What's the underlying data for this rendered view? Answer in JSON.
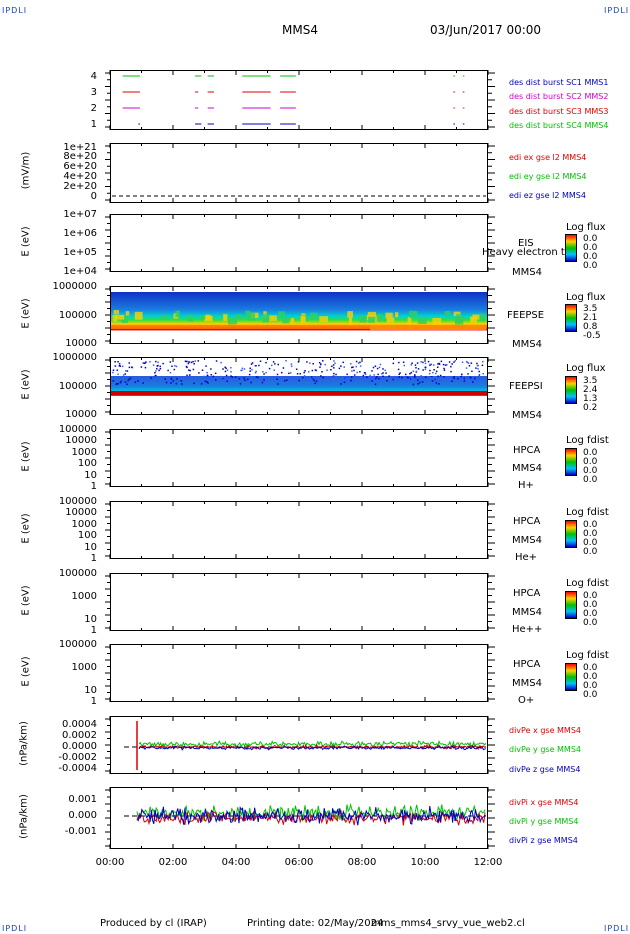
{
  "header": {
    "corner_left": "IPDLI",
    "corner_right": "IPDLI",
    "spacecraft": "MMS4",
    "date": "03/Jun/2017 00:00"
  },
  "footer": {
    "produced": "Produced by cl (IRAP)",
    "printing": "Printing date: 02/May/2024",
    "file": "mms_mms4_srvy_vue_web2.cl",
    "corner_left": "IPDLI",
    "corner_right": "IPDLI"
  },
  "xaxis": {
    "ticks": [
      "00:00",
      "02:00",
      "04:00",
      "06:00",
      "08:00",
      "10:00",
      "12:00"
    ]
  },
  "colors": {
    "red": "#e00000",
    "green": "#00c000",
    "blue": "#0000c0",
    "magenta": "#d000d0"
  },
  "chart_data": [
    {
      "type": "line",
      "panel": "burst",
      "yticks": [
        "4",
        "3",
        "2",
        "1"
      ],
      "legend": [
        "des dist burst SC1 MMS1",
        "des dist burst SC2 MMS2",
        "des dist burst SC3 MMS3",
        "des dist burst SC4 MMS4"
      ]
    },
    {
      "type": "line",
      "panel": "edi",
      "ylabel": "(mV/m)",
      "yticks": [
        "1e+21",
        "8e+20",
        "6e+20",
        "4e+20",
        "2e+20",
        "0"
      ],
      "legend": [
        "edi ex gse l2 MMS4",
        "edi ey gse l2 MMS4",
        "edi ez gse l2 MMS4"
      ]
    },
    {
      "type": "heatmap",
      "panel": "eis",
      "ylabel": "E (eV)",
      "yticks": [
        "1e+07",
        "1e+06",
        "1e+05",
        "1e+04"
      ],
      "instrument": [
        "EIS",
        "MMS4"
      ],
      "overlay": "Heavy electron to",
      "cbar_title": "Log flux",
      "cbar_values": [
        "0.0",
        "0.0",
        "0.0",
        "0.0"
      ]
    },
    {
      "type": "heatmap",
      "panel": "feepse",
      "ylabel": "E (eV)",
      "yticks": [
        "1000000",
        "100000",
        "10000"
      ],
      "instrument": [
        "FEEPSE",
        "MMS4"
      ],
      "cbar_title": "Log flux",
      "cbar_values": [
        "3.5",
        "2.1",
        "0.8",
        "-0.5"
      ]
    },
    {
      "type": "heatmap",
      "panel": "feepsi",
      "ylabel": "E (eV)",
      "yticks": [
        "1000000",
        "100000",
        "10000"
      ],
      "instrument": [
        "FEEPSI",
        "MMS4"
      ],
      "cbar_title": "Log flux",
      "cbar_values": [
        "3.5",
        "2.4",
        "1.3",
        "0.2"
      ]
    },
    {
      "type": "heatmap",
      "panel": "hpca_h",
      "ylabel": "E (eV)",
      "yticks": [
        "100000",
        "10000",
        "1000",
        "100",
        "10",
        "1"
      ],
      "instrument": [
        "HPCA",
        "MMS4",
        "H+"
      ],
      "cbar_title": "Log fdist",
      "cbar_values": [
        "0.0",
        "0.0",
        "0.0",
        "0.0"
      ]
    },
    {
      "type": "heatmap",
      "panel": "hpca_he",
      "ylabel": "E (eV)",
      "yticks": [
        "100000",
        "10000",
        "1000",
        "100",
        "10",
        "1"
      ],
      "instrument": [
        "HPCA",
        "MMS4",
        "He+"
      ],
      "cbar_title": "Log fdist",
      "cbar_values": [
        "0.0",
        "0.0",
        "0.0",
        "0.0"
      ]
    },
    {
      "type": "heatmap",
      "panel": "hpca_hepp",
      "ylabel": "E (eV)",
      "yticks": [
        "100000",
        "1000",
        "10",
        "1"
      ],
      "instrument": [
        "HPCA",
        "MMS4",
        "He++"
      ],
      "cbar_title": "Log fdist",
      "cbar_values": [
        "0.0",
        "0.0",
        "0.0",
        "0.0"
      ]
    },
    {
      "type": "heatmap",
      "panel": "hpca_o",
      "ylabel": "E (eV)",
      "yticks": [
        "100000",
        "1000",
        "10",
        "1"
      ],
      "instrument": [
        "HPCA",
        "MMS4",
        "O+"
      ],
      "cbar_title": "Log fdist",
      "cbar_values": [
        "0.0",
        "0.0",
        "0.0",
        "0.0"
      ]
    },
    {
      "type": "line",
      "panel": "divpe",
      "ylabel": "(nPa/km)",
      "yticks": [
        "0.0004",
        "0.0002",
        "0.0000",
        "-0.0002",
        "-0.0004"
      ],
      "legend": [
        "divPe x gse MMS4",
        "divPe y gse MMS4",
        "divPe z gse MMS4"
      ]
    },
    {
      "type": "line",
      "panel": "divpi",
      "ylabel": "(nPa/km)",
      "yticks": [
        "0.001",
        "0.000",
        "-0.001"
      ],
      "legend": [
        "divPi x gse MMS4",
        "divPi y gse MMS4",
        "divPi z gse MMS4"
      ]
    }
  ]
}
